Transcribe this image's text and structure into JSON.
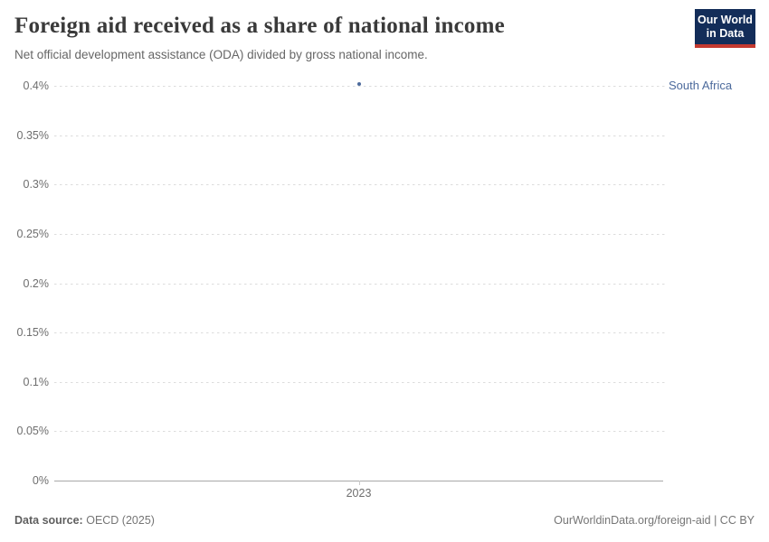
{
  "header": {
    "title": "Foreign aid received as a share of national income",
    "subtitle": "Net official development assistance (ODA) divided by gross national income.",
    "logo_line1": "Our World",
    "logo_line2": "in Data"
  },
  "chart_data": {
    "type": "scatter",
    "title": "Foreign aid received as a share of national income",
    "subtitle": "Net official development assistance (ODA) divided by gross national income.",
    "x": [
      2023
    ],
    "x_tick_labels": [
      "2023"
    ],
    "series": [
      {
        "name": "South Africa",
        "values": [
          0.4
        ],
        "color": "#4C6A9C"
      }
    ],
    "y_tick_labels": [
      "0%",
      "0.05%",
      "0.1%",
      "0.15%",
      "0.2%",
      "0.25%",
      "0.3%",
      "0.35%",
      "0.4%"
    ],
    "ylim": [
      0,
      0.4
    ],
    "grid": "horizontal-dashed",
    "legend_position": "inline-right-entity-label"
  },
  "footer": {
    "source_label": "Data source:",
    "source_value": "OECD (2025)",
    "license": "OurWorldinData.org/foreign-aid | CC BY"
  },
  "colors": {
    "logo_bg": "#132D59",
    "logo_accent": "#C4392F",
    "title_text": "#3a3a3a",
    "subtitle_text": "#666666",
    "tick_text": "#6e6e6e",
    "gridline": "#dcdcdc",
    "axis_line": "#a8a8a8",
    "entity": "#4C6A9C",
    "footer_text": "#757575"
  }
}
